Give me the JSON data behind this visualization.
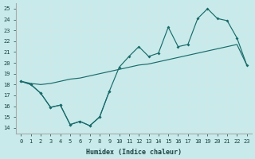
{
  "bg_color": "#c8eaea",
  "grid_color": "#b8d8d8",
  "line_color": "#1a6b6b",
  "xlim": [
    -0.5,
    23.5
  ],
  "ylim": [
    13.5,
    25.5
  ],
  "xticks": [
    0,
    1,
    2,
    3,
    4,
    5,
    6,
    7,
    8,
    9,
    10,
    11,
    12,
    13,
    14,
    15,
    16,
    17,
    18,
    19,
    20,
    21,
    22,
    23
  ],
  "yticks": [
    14,
    15,
    16,
    17,
    18,
    19,
    20,
    21,
    22,
    23,
    24,
    25
  ],
  "xlabel": "Humidex (Indice chaleur)",
  "series1_x": [
    0,
    1,
    2,
    3,
    4,
    5,
    6,
    7,
    8,
    9,
    10,
    11,
    12,
    13,
    14,
    15,
    16,
    17,
    18,
    19,
    20,
    21,
    22,
    23
  ],
  "series1_y": [
    18.3,
    18.0,
    17.2,
    15.9,
    16.1,
    14.3,
    14.6,
    14.2,
    15.0,
    17.4,
    19.6,
    20.6,
    21.5,
    20.6,
    20.9,
    23.3,
    21.5,
    21.7,
    24.1,
    25.0,
    24.1,
    23.9,
    22.3,
    19.8
  ],
  "series2_x": [
    0,
    1,
    2,
    3,
    4,
    5,
    6,
    7,
    8,
    9,
    10,
    11,
    12,
    13,
    14,
    15,
    16,
    17,
    18,
    19,
    20,
    21,
    22,
    23
  ],
  "series2_y": [
    18.3,
    18.1,
    18.0,
    18.1,
    18.3,
    18.5,
    18.6,
    18.8,
    19.0,
    19.2,
    19.4,
    19.6,
    19.8,
    19.9,
    20.1,
    20.3,
    20.5,
    20.7,
    20.9,
    21.1,
    21.3,
    21.5,
    21.7,
    19.8
  ],
  "series3_x": [
    0,
    1,
    2,
    3,
    4,
    5,
    6,
    7,
    8,
    9
  ],
  "series3_y": [
    18.3,
    18.0,
    17.2,
    15.9,
    16.1,
    14.3,
    14.6,
    14.2,
    15.0,
    17.4
  ]
}
